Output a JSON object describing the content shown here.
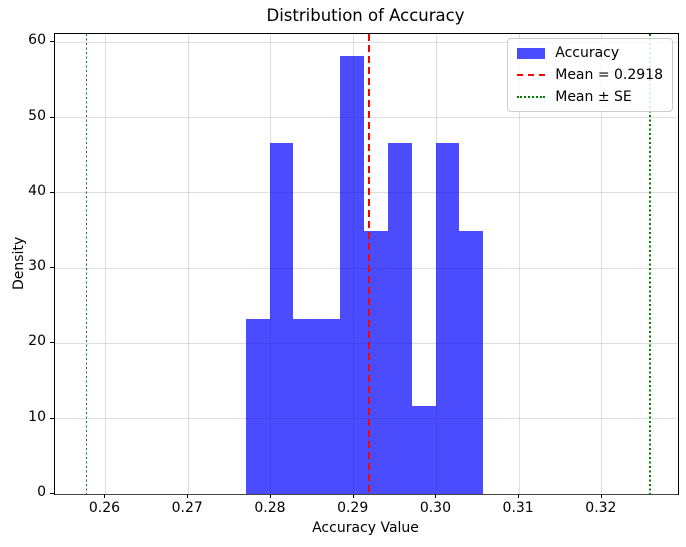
{
  "chart_data": {
    "type": "bar",
    "subtype": "histogram-density",
    "title": "Distribution of Accuracy",
    "xlabel": "Accuracy Value",
    "ylabel": "Density",
    "xlim": [
      0.2539,
      0.3292
    ],
    "ylim": [
      0,
      61.1
    ],
    "grid": {
      "on": true,
      "color": "#b0b0b0",
      "opacity": 0.4
    },
    "xticks": {
      "values": [
        0.26,
        0.27,
        0.28,
        0.29,
        0.3,
        0.31,
        0.32
      ],
      "labels": [
        "0.26",
        "0.27",
        "0.28",
        "0.29",
        "0.30",
        "0.31",
        "0.32"
      ]
    },
    "yticks": {
      "values": [
        0,
        10,
        20,
        30,
        40,
        50,
        60
      ],
      "labels": [
        "0",
        "10",
        "20",
        "30",
        "40",
        "50",
        "60"
      ]
    },
    "histogram": {
      "bin_edges": [
        0.277,
        0.2799,
        0.2827,
        0.2856,
        0.2884,
        0.2913,
        0.2942,
        0.297,
        0.2999,
        0.3027,
        0.3056
      ],
      "densities": [
        23.29,
        46.58,
        23.29,
        23.29,
        58.23,
        34.94,
        46.58,
        11.65,
        46.58,
        34.94
      ],
      "counts": [
        2,
        4,
        2,
        2,
        5,
        3,
        4,
        1,
        4,
        3
      ],
      "color": "#0000ff",
      "opacity": 0.7
    },
    "mean_line": {
      "value": 0.2918,
      "color": "#ff0000",
      "style": "dashed"
    },
    "se_lines": {
      "values": [
        0.2577,
        0.3258
      ],
      "color": "#008000",
      "style": "dotted"
    },
    "legend": {
      "position": "upper right",
      "entries": [
        {
          "label": "Accuracy",
          "marker": "patch",
          "color": "#0000ff"
        },
        {
          "label": "Mean = 0.2918",
          "marker": "dashed-line",
          "color": "#ff0000"
        },
        {
          "label": "Mean ± SE",
          "marker": "dotted-line",
          "color": "#008000"
        }
      ]
    }
  }
}
